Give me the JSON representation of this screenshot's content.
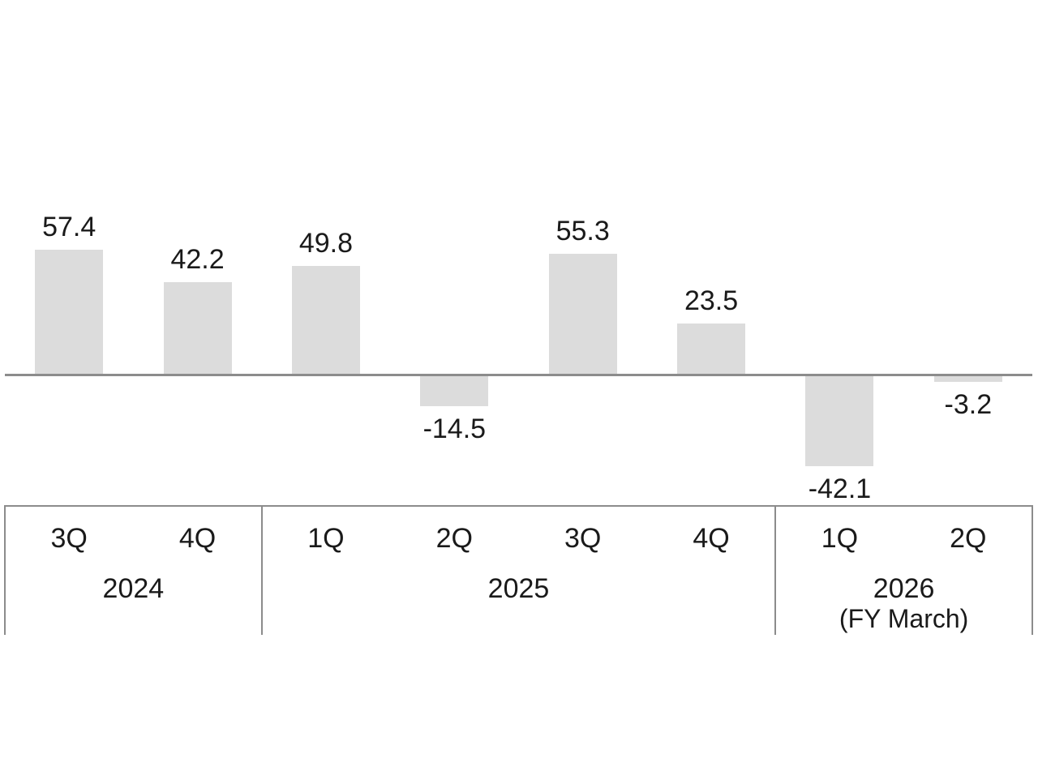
{
  "chart_data": {
    "type": "bar",
    "categories": [
      "3Q",
      "4Q",
      "1Q",
      "2Q",
      "3Q",
      "4Q",
      "1Q",
      "2Q"
    ],
    "values": [
      57.4,
      42.2,
      49.8,
      -14.5,
      55.3,
      23.5,
      -42.1,
      -3.2
    ],
    "value_labels": [
      "57.4",
      "42.2",
      "49.8",
      "-14.5",
      "55.3",
      "23.5",
      "-42.1",
      "-3.2"
    ],
    "groups": [
      {
        "label": "2024",
        "sublabel": "",
        "span": 2
      },
      {
        "label": "2025",
        "sublabel": "",
        "span": 4
      },
      {
        "label": "2026",
        "sublabel": "(FY March)",
        "span": 2
      }
    ],
    "title": "",
    "xlabel": "",
    "ylabel": "",
    "legend": null,
    "grid": false,
    "data_labels_shown": true,
    "y_axis_ticks_shown": false,
    "ylim": [
      -55,
      70
    ],
    "colors": {
      "bar": "#dcdcdc",
      "axis_line": "#8c8c8c",
      "table_border": "#8c8c8c",
      "text": "#1a1a1a",
      "background": "#ffffff"
    }
  }
}
